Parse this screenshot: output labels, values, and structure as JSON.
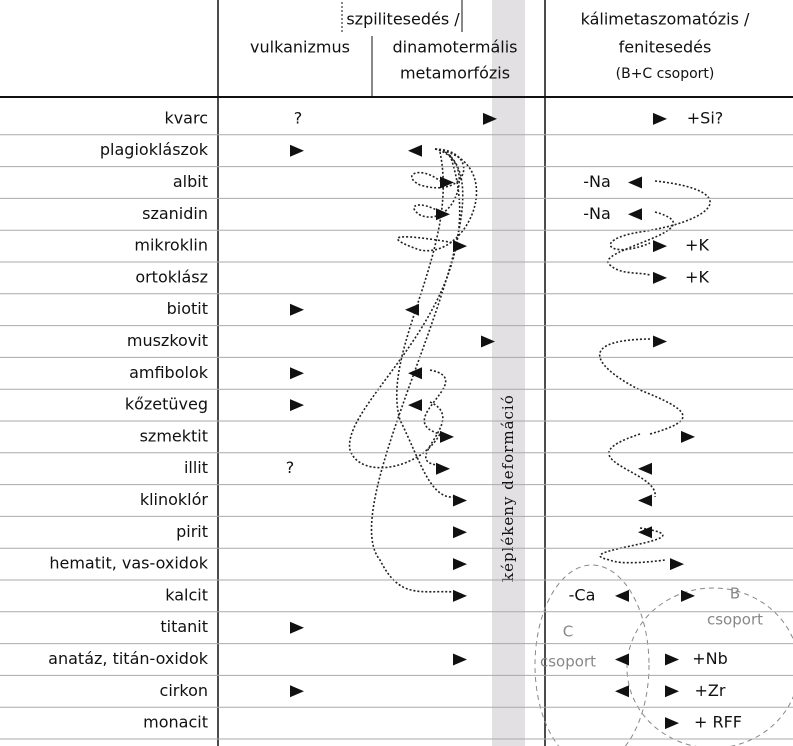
{
  "header": {
    "col1": "vulkanizmus",
    "col2a": "szpilitesedés /",
    "col2b": "dinamotermális",
    "col2c": "metamorfózis",
    "col3a": "kálimetaszomatózis /",
    "col3b": "fenitesedés",
    "col3c": "(B+C csoport)"
  },
  "band_label": "képlékeny deformáció",
  "rows": [
    "kvarc",
    "plagioklászok",
    "albit",
    "szanidin",
    "mikroklin",
    "ortoklász",
    "biotit",
    "muszkovit",
    "amfibolok",
    "kőzetüveg",
    "szmektit",
    "illit",
    "klinoklór",
    "pirit",
    "hematit, vas-oxidok",
    "kalcit",
    "titanit",
    "anatáz, titán-oxidok",
    "cirkon",
    "monacit"
  ],
  "annotations": [
    "?",
    "+Si?",
    "-Na",
    "-Na",
    "+K",
    "+K",
    "?",
    "-Ca",
    "+Nb",
    "+Zr",
    "+ RFF"
  ],
  "groups": [
    "B",
    "csoport",
    "C",
    "csoport"
  ]
}
